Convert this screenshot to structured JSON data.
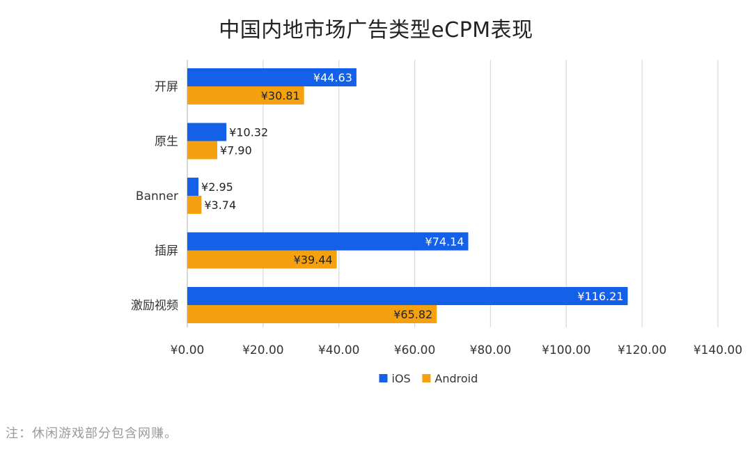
{
  "chart_data": {
    "type": "bar",
    "orientation": "horizontal",
    "title": "中国内地市场广告类型eCPM表现",
    "categories": [
      "开屏",
      "原生",
      "Banner",
      "插屏",
      "激励视频"
    ],
    "series": [
      {
        "name": "iOS",
        "color": "#1460e8",
        "values": [
          44.63,
          10.32,
          2.95,
          74.14,
          116.21
        ],
        "value_labels": [
          "¥44.63",
          "¥10.32",
          "¥2.95",
          "¥74.14",
          "¥116.21"
        ]
      },
      {
        "name": "Android",
        "color": "#f5a00f",
        "values": [
          30.81,
          7.9,
          3.74,
          39.44,
          65.82
        ],
        "value_labels": [
          "¥30.81",
          "¥7.90",
          "¥3.74",
          "¥39.44",
          "¥65.82"
        ]
      }
    ],
    "xlim": [
      0,
      140
    ],
    "x_ticks": [
      0,
      20,
      40,
      60,
      80,
      100,
      120,
      140
    ],
    "x_tick_labels": [
      "¥0.00",
      "¥20.00",
      "¥40.00",
      "¥60.00",
      "¥80.00",
      "¥100.00",
      "¥120.00",
      "¥140.00"
    ],
    "grid": "vertical",
    "legend_position": "bottom-center",
    "footnote": "注：休闲游戏部分包含网赚。"
  }
}
